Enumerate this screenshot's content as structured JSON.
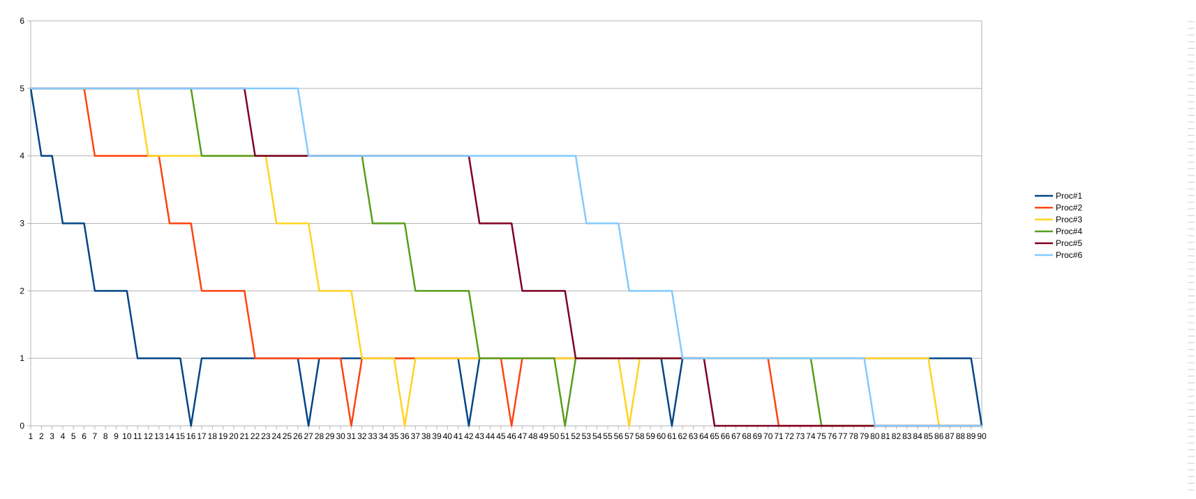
{
  "chart_data": {
    "type": "line",
    "x": [
      1,
      2,
      3,
      4,
      5,
      6,
      7,
      8,
      9,
      10,
      11,
      12,
      13,
      14,
      15,
      16,
      17,
      18,
      19,
      20,
      21,
      22,
      23,
      24,
      25,
      26,
      27,
      28,
      29,
      30,
      31,
      32,
      33,
      34,
      35,
      36,
      37,
      38,
      39,
      40,
      41,
      42,
      43,
      44,
      45,
      46,
      47,
      48,
      49,
      50,
      51,
      52,
      53,
      54,
      55,
      56,
      57,
      58,
      59,
      60,
      61,
      62,
      63,
      64,
      65,
      66,
      67,
      68,
      69,
      70,
      71,
      72,
      73,
      74,
      75,
      76,
      77,
      78,
      79,
      80,
      81,
      82,
      83,
      84,
      85,
      86,
      87,
      88,
      89,
      90
    ],
    "y_ticks": [
      "0",
      "1",
      "2",
      "3",
      "4",
      "5",
      "6"
    ],
    "ylim": [
      0,
      6
    ],
    "grid": true,
    "legend_position": "right",
    "series": [
      {
        "name": "Proc#1",
        "color": "#004586",
        "values": [
          5,
          4,
          4,
          3,
          3,
          3,
          2,
          2,
          2,
          2,
          1,
          1,
          1,
          1,
          1,
          0,
          1,
          1,
          1,
          1,
          1,
          1,
          1,
          1,
          1,
          1,
          0,
          1,
          1,
          1,
          1,
          1,
          1,
          1,
          1,
          1,
          1,
          1,
          1,
          1,
          1,
          0,
          1,
          1,
          1,
          1,
          1,
          1,
          1,
          1,
          1,
          1,
          1,
          1,
          1,
          1,
          1,
          1,
          1,
          1,
          0,
          1,
          1,
          1,
          1,
          1,
          1,
          1,
          1,
          1,
          1,
          1,
          1,
          1,
          1,
          1,
          1,
          1,
          1,
          1,
          1,
          1,
          1,
          1,
          1,
          1,
          1,
          1,
          1,
          0
        ]
      },
      {
        "name": "Proc#2",
        "color": "#ff420e",
        "values": [
          5,
          5,
          5,
          5,
          5,
          5,
          4,
          4,
          4,
          4,
          4,
          4,
          4,
          3,
          3,
          3,
          2,
          2,
          2,
          2,
          2,
          1,
          1,
          1,
          1,
          1,
          1,
          1,
          1,
          1,
          0,
          1,
          1,
          1,
          1,
          1,
          1,
          1,
          1,
          1,
          1,
          1,
          1,
          1,
          1,
          0,
          1,
          1,
          1,
          1,
          1,
          1,
          1,
          1,
          1,
          1,
          1,
          1,
          1,
          1,
          1,
          1,
          1,
          1,
          1,
          1,
          1,
          1,
          1,
          1,
          0,
          0,
          0,
          0,
          0,
          0,
          0,
          0,
          0,
          0,
          0,
          0,
          0,
          0,
          0,
          0,
          0,
          0,
          0,
          0
        ]
      },
      {
        "name": "Proc#3",
        "color": "#ffd320",
        "values": [
          5,
          5,
          5,
          5,
          5,
          5,
          5,
          5,
          5,
          5,
          5,
          4,
          4,
          4,
          4,
          4,
          4,
          4,
          4,
          4,
          4,
          4,
          4,
          3,
          3,
          3,
          3,
          2,
          2,
          2,
          2,
          1,
          1,
          1,
          1,
          0,
          1,
          1,
          1,
          1,
          1,
          1,
          1,
          1,
          1,
          1,
          1,
          1,
          1,
          1,
          1,
          1,
          1,
          1,
          1,
          1,
          0,
          1,
          1,
          1,
          1,
          1,
          1,
          1,
          1,
          1,
          1,
          1,
          1,
          1,
          1,
          1,
          1,
          1,
          1,
          1,
          1,
          1,
          1,
          1,
          1,
          1,
          1,
          1,
          1,
          0,
          0,
          0,
          0,
          0
        ]
      },
      {
        "name": "Proc#4",
        "color": "#579d1c",
        "values": [
          5,
          5,
          5,
          5,
          5,
          5,
          5,
          5,
          5,
          5,
          5,
          5,
          5,
          5,
          5,
          5,
          4,
          4,
          4,
          4,
          4,
          4,
          4,
          4,
          4,
          4,
          4,
          4,
          4,
          4,
          4,
          4,
          3,
          3,
          3,
          3,
          2,
          2,
          2,
          2,
          2,
          2,
          1,
          1,
          1,
          1,
          1,
          1,
          1,
          1,
          0,
          1,
          1,
          1,
          1,
          1,
          1,
          1,
          1,
          1,
          1,
          1,
          1,
          1,
          1,
          1,
          1,
          1,
          1,
          1,
          1,
          1,
          1,
          1,
          0,
          0,
          0,
          0,
          0,
          0,
          0,
          0,
          0,
          0,
          0,
          0,
          0,
          0,
          0,
          0
        ]
      },
      {
        "name": "Proc#5",
        "color": "#7e0021",
        "values": [
          5,
          5,
          5,
          5,
          5,
          5,
          5,
          5,
          5,
          5,
          5,
          5,
          5,
          5,
          5,
          5,
          5,
          5,
          5,
          5,
          5,
          4,
          4,
          4,
          4,
          4,
          4,
          4,
          4,
          4,
          4,
          4,
          4,
          4,
          4,
          4,
          4,
          4,
          4,
          4,
          4,
          4,
          3,
          3,
          3,
          3,
          2,
          2,
          2,
          2,
          2,
          1,
          1,
          1,
          1,
          1,
          1,
          1,
          1,
          1,
          1,
          1,
          1,
          1,
          0,
          0,
          0,
          0,
          0,
          0,
          0,
          0,
          0,
          0,
          0,
          0,
          0,
          0,
          0,
          0,
          0,
          0,
          0,
          0,
          0,
          0,
          0,
          0,
          0,
          0
        ]
      },
      {
        "name": "Proc#6",
        "color": "#83caff",
        "values": [
          5,
          5,
          5,
          5,
          5,
          5,
          5,
          5,
          5,
          5,
          5,
          5,
          5,
          5,
          5,
          5,
          5,
          5,
          5,
          5,
          5,
          5,
          5,
          5,
          5,
          5,
          4,
          4,
          4,
          4,
          4,
          4,
          4,
          4,
          4,
          4,
          4,
          4,
          4,
          4,
          4,
          4,
          4,
          4,
          4,
          4,
          4,
          4,
          4,
          4,
          4,
          4,
          3,
          3,
          3,
          3,
          2,
          2,
          2,
          2,
          2,
          1,
          1,
          1,
          1,
          1,
          1,
          1,
          1,
          1,
          1,
          1,
          1,
          1,
          1,
          1,
          1,
          1,
          1,
          0,
          0,
          0,
          0,
          0,
          0,
          0,
          0,
          0,
          0,
          0
        ]
      }
    ]
  }
}
